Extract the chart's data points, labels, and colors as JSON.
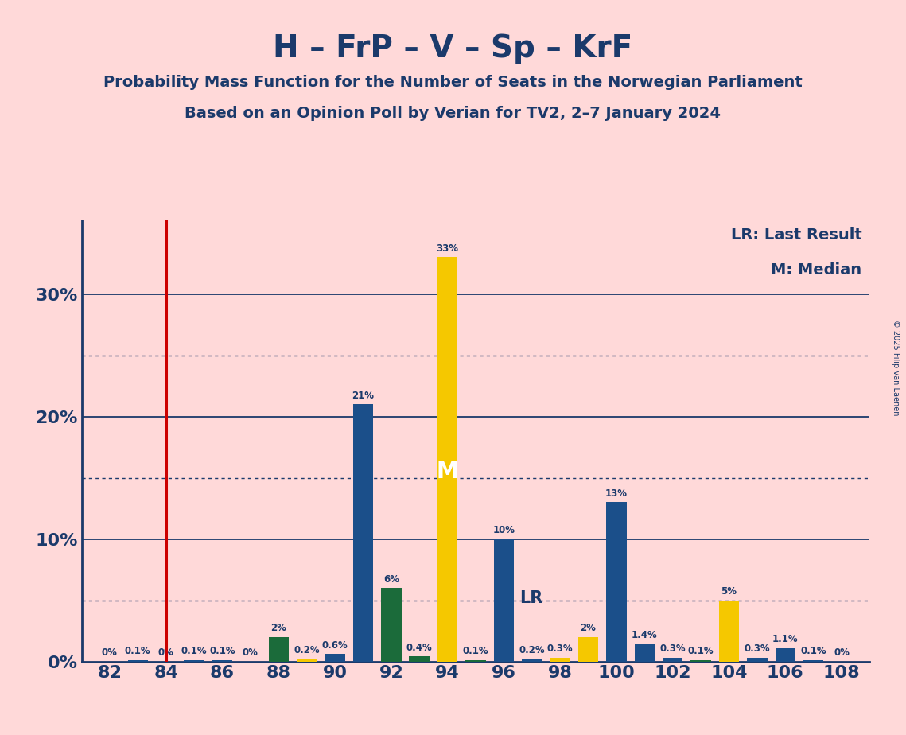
{
  "title": "H – FrP – V – Sp – KrF",
  "subtitle1": "Probability Mass Function for the Number of Seats in the Norwegian Parliament",
  "subtitle2": "Based on an Opinion Poll by Verian for TV2, 2–7 January 2024",
  "copyright": "© 2025 Filip van Laenen",
  "lr_label": "LR: Last Result",
  "m_label": "M: Median",
  "background_color": "#FFD9D9",
  "bar_color_blue": "#1B4F8A",
  "bar_color_green": "#1B6B3A",
  "bar_color_yellow": "#F5C800",
  "lr_line_color": "#CC0000",
  "axis_color": "#1B3A6B",
  "text_color": "#1B3A6B",
  "grid_color": "#1B3A6B",
  "lr_seat": 84,
  "median_seat": 94,
  "lr_annotation_seat": 96,
  "seats": [
    82,
    83,
    84,
    85,
    86,
    87,
    88,
    89,
    90,
    91,
    92,
    93,
    94,
    95,
    96,
    97,
    98,
    99,
    100,
    101,
    102,
    103,
    104,
    105,
    106,
    107,
    108
  ],
  "values": [
    0.0,
    0.1,
    0.0,
    0.1,
    0.1,
    0.0,
    2.0,
    0.2,
    0.6,
    21.0,
    6.0,
    0.4,
    33.0,
    0.1,
    10.0,
    0.2,
    0.3,
    2.0,
    13.0,
    1.4,
    0.3,
    0.1,
    5.0,
    0.3,
    1.1,
    0.1,
    0.0
  ],
  "bar_colors": [
    "#1B4F8A",
    "#1B4F8A",
    "#1B4F8A",
    "#1B4F8A",
    "#1B4F8A",
    "#1B4F8A",
    "#1B6B3A",
    "#F5C800",
    "#1B4F8A",
    "#1B4F8A",
    "#1B6B3A",
    "#1B6B3A",
    "#F5C800",
    "#1B6B3A",
    "#1B4F8A",
    "#1B4F8A",
    "#F5C800",
    "#F5C800",
    "#1B4F8A",
    "#1B4F8A",
    "#1B4F8A",
    "#1B6B3A",
    "#F5C800",
    "#1B4F8A",
    "#1B4F8A",
    "#1B4F8A",
    "#1B4F8A"
  ],
  "xlim": [
    81.0,
    109.0
  ],
  "ylim": [
    0,
    36
  ],
  "xticks": [
    82,
    84,
    86,
    88,
    90,
    92,
    94,
    96,
    98,
    100,
    102,
    104,
    106,
    108
  ],
  "bar_width": 0.72,
  "label_fontsize": 8.5,
  "tick_fontsize": 16,
  "title_fontsize": 28,
  "subtitle_fontsize": 14,
  "legend_fontsize": 14
}
